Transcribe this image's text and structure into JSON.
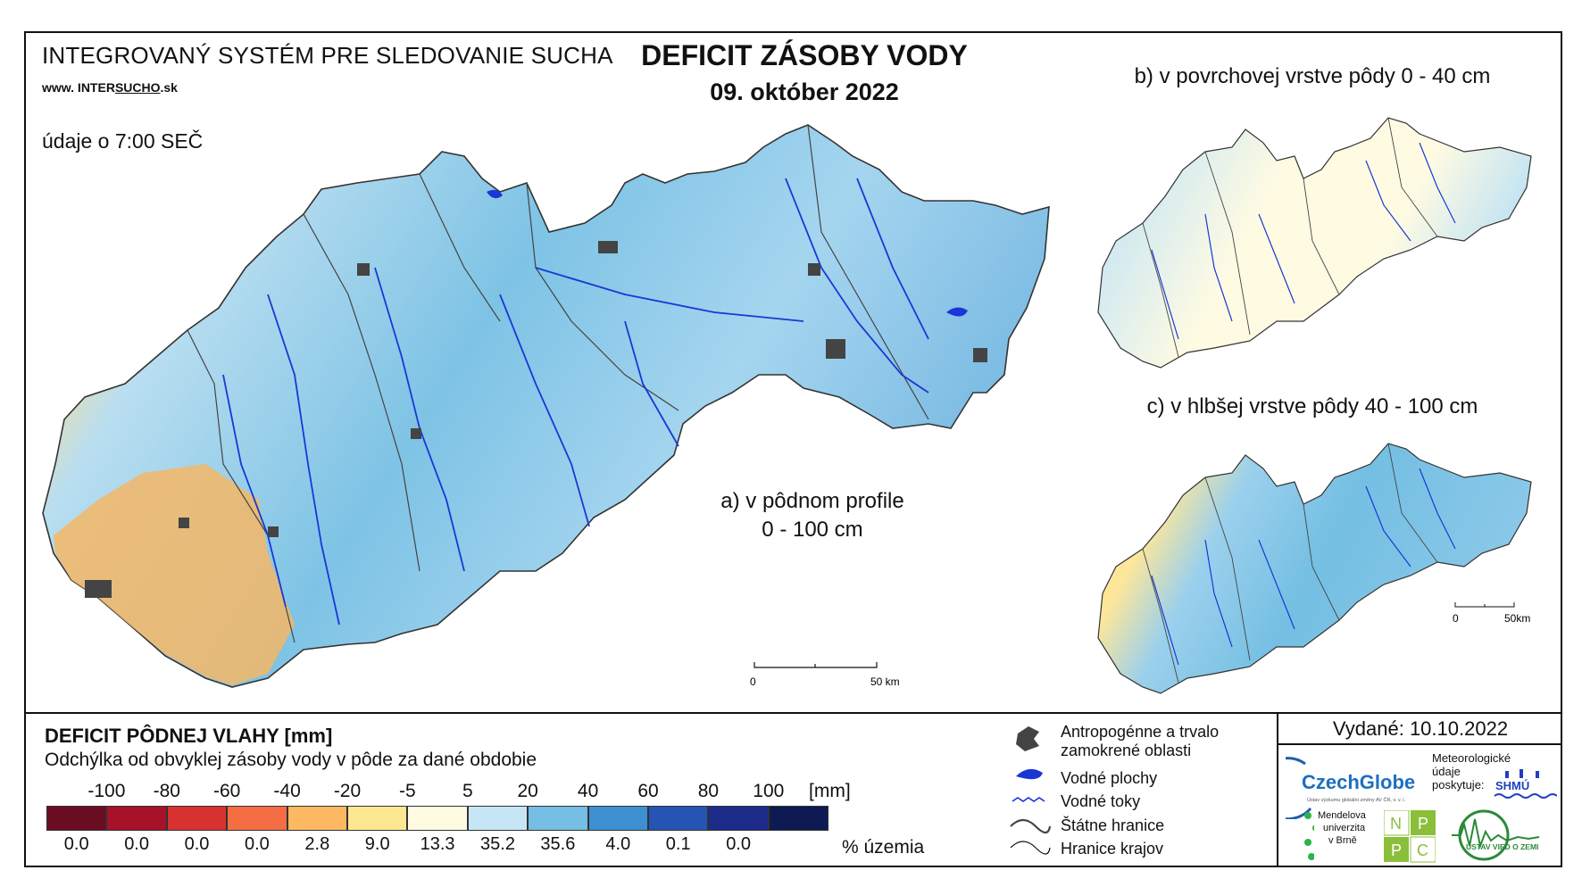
{
  "header": {
    "system_title": "INTEGROVANÝ SYSTÉM PRE SLEDOVANIE SUCHA",
    "url_prefix": "www. INTER",
    "url_highlight": "SUCHO",
    "url_suffix": ".sk",
    "obs_time": "údaje o 7:00 SEČ",
    "main_title": "DEFICIT ZÁSOBY VODY",
    "date": "09. október 2022"
  },
  "maps": {
    "a_line1": "a) v pôdnom profile",
    "a_line2": "0 - 100 cm",
    "b_caption": "b) v povrchovej vrstve pôdy 0 - 40 cm",
    "c_caption": "c) v hlbšej vrstve pôdy 40 - 100 cm",
    "scale_main_start": "0",
    "scale_main_end": "50 km",
    "scale_small_start": "0",
    "scale_small_end": "50km"
  },
  "legend": {
    "title": "DEFICIT PÔDNEJ VLAHY [mm]",
    "subtitle": "Odchýlka od obvyklej zásoby vody v pôde za dané obdobie",
    "unit": "[mm]",
    "pct_unit": "% územia",
    "ticks": [
      "-100",
      "-80",
      "-60",
      "-40",
      "-20",
      "-5",
      "5",
      "20",
      "40",
      "60",
      "80",
      "100"
    ],
    "classes": [
      {
        "color": "#6b0d22",
        "percent": "0.0"
      },
      {
        "color": "#a5122a",
        "percent": "0.0"
      },
      {
        "color": "#d7322f",
        "percent": "0.0"
      },
      {
        "color": "#f46d43",
        "percent": "0.0"
      },
      {
        "color": "#fdb863",
        "percent": "2.8"
      },
      {
        "color": "#fee791",
        "percent": "9.0"
      },
      {
        "color": "#fffbe3",
        "percent": "13.3"
      },
      {
        "color": "#c6e6f5",
        "percent": "35.2"
      },
      {
        "color": "#74bfe3",
        "percent": "35.6"
      },
      {
        "color": "#3d8fd0",
        "percent": "4.0"
      },
      {
        "color": "#2455b4",
        "percent": "0.1"
      },
      {
        "color": "#1c2a8a",
        "percent": "0.0"
      },
      {
        "color": "#0d1b52",
        "percent": ""
      }
    ]
  },
  "symbols": {
    "urban": "Antropogénne a trvalo\nzamokrené oblasti",
    "urban_line1": "Antropogénne a trvalo",
    "urban_line2": "zamokrené oblasti",
    "water_bodies": "Vodné plochy",
    "rivers": "Vodné toky",
    "state_border": "Štátne hranice",
    "region_border": "Hranice krajov"
  },
  "footer": {
    "issued": "Vydané: 10.10.2022",
    "czechglobe": "CzechGlobe",
    "czechglobe_sub": "Ústav výzkumu globální změny AV ČR, v. v. i.",
    "met_text_1": "Meteorologické",
    "met_text_2": "údaje",
    "met_text_3": "poskytuje:",
    "shmu": "SHMÚ",
    "mendel_1": "Mendelova",
    "mendel_2": "univerzita",
    "mendel_3": "v Brně",
    "nppc_n": "N",
    "nppc_p1": "P",
    "nppc_p2": "P",
    "nppc_c": "C",
    "uvz": "ÚSTAV VIED O ZEMI"
  }
}
